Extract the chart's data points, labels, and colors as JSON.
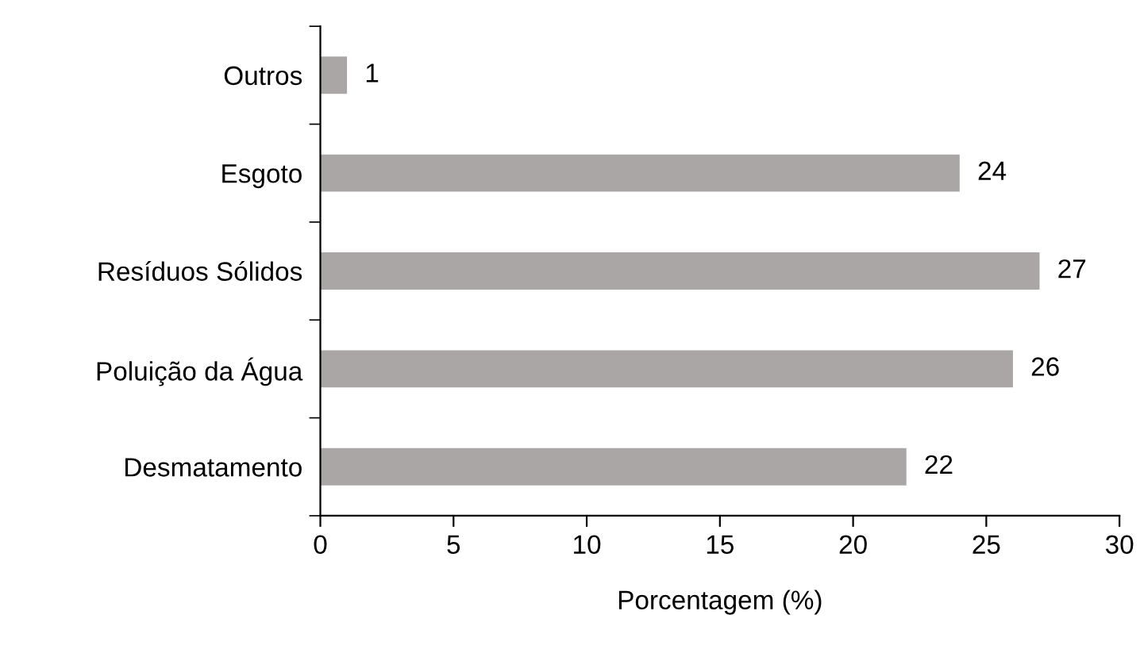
{
  "chart_data": {
    "type": "bar",
    "orientation": "horizontal",
    "xlabel": "Porcentagem (%)",
    "categories": [
      "Outros",
      "Esgoto",
      "Resíduos Sólidos",
      "Poluição da Água",
      "Desmatamento"
    ],
    "values": [
      1,
      24,
      27,
      26,
      22
    ],
    "color": "#aba6a6",
    "data_labels": true,
    "xlim": [
      0,
      30
    ],
    "xticks": [
      0,
      5,
      10,
      15,
      20,
      25,
      30
    ],
    "grid": false,
    "legend": false
  }
}
